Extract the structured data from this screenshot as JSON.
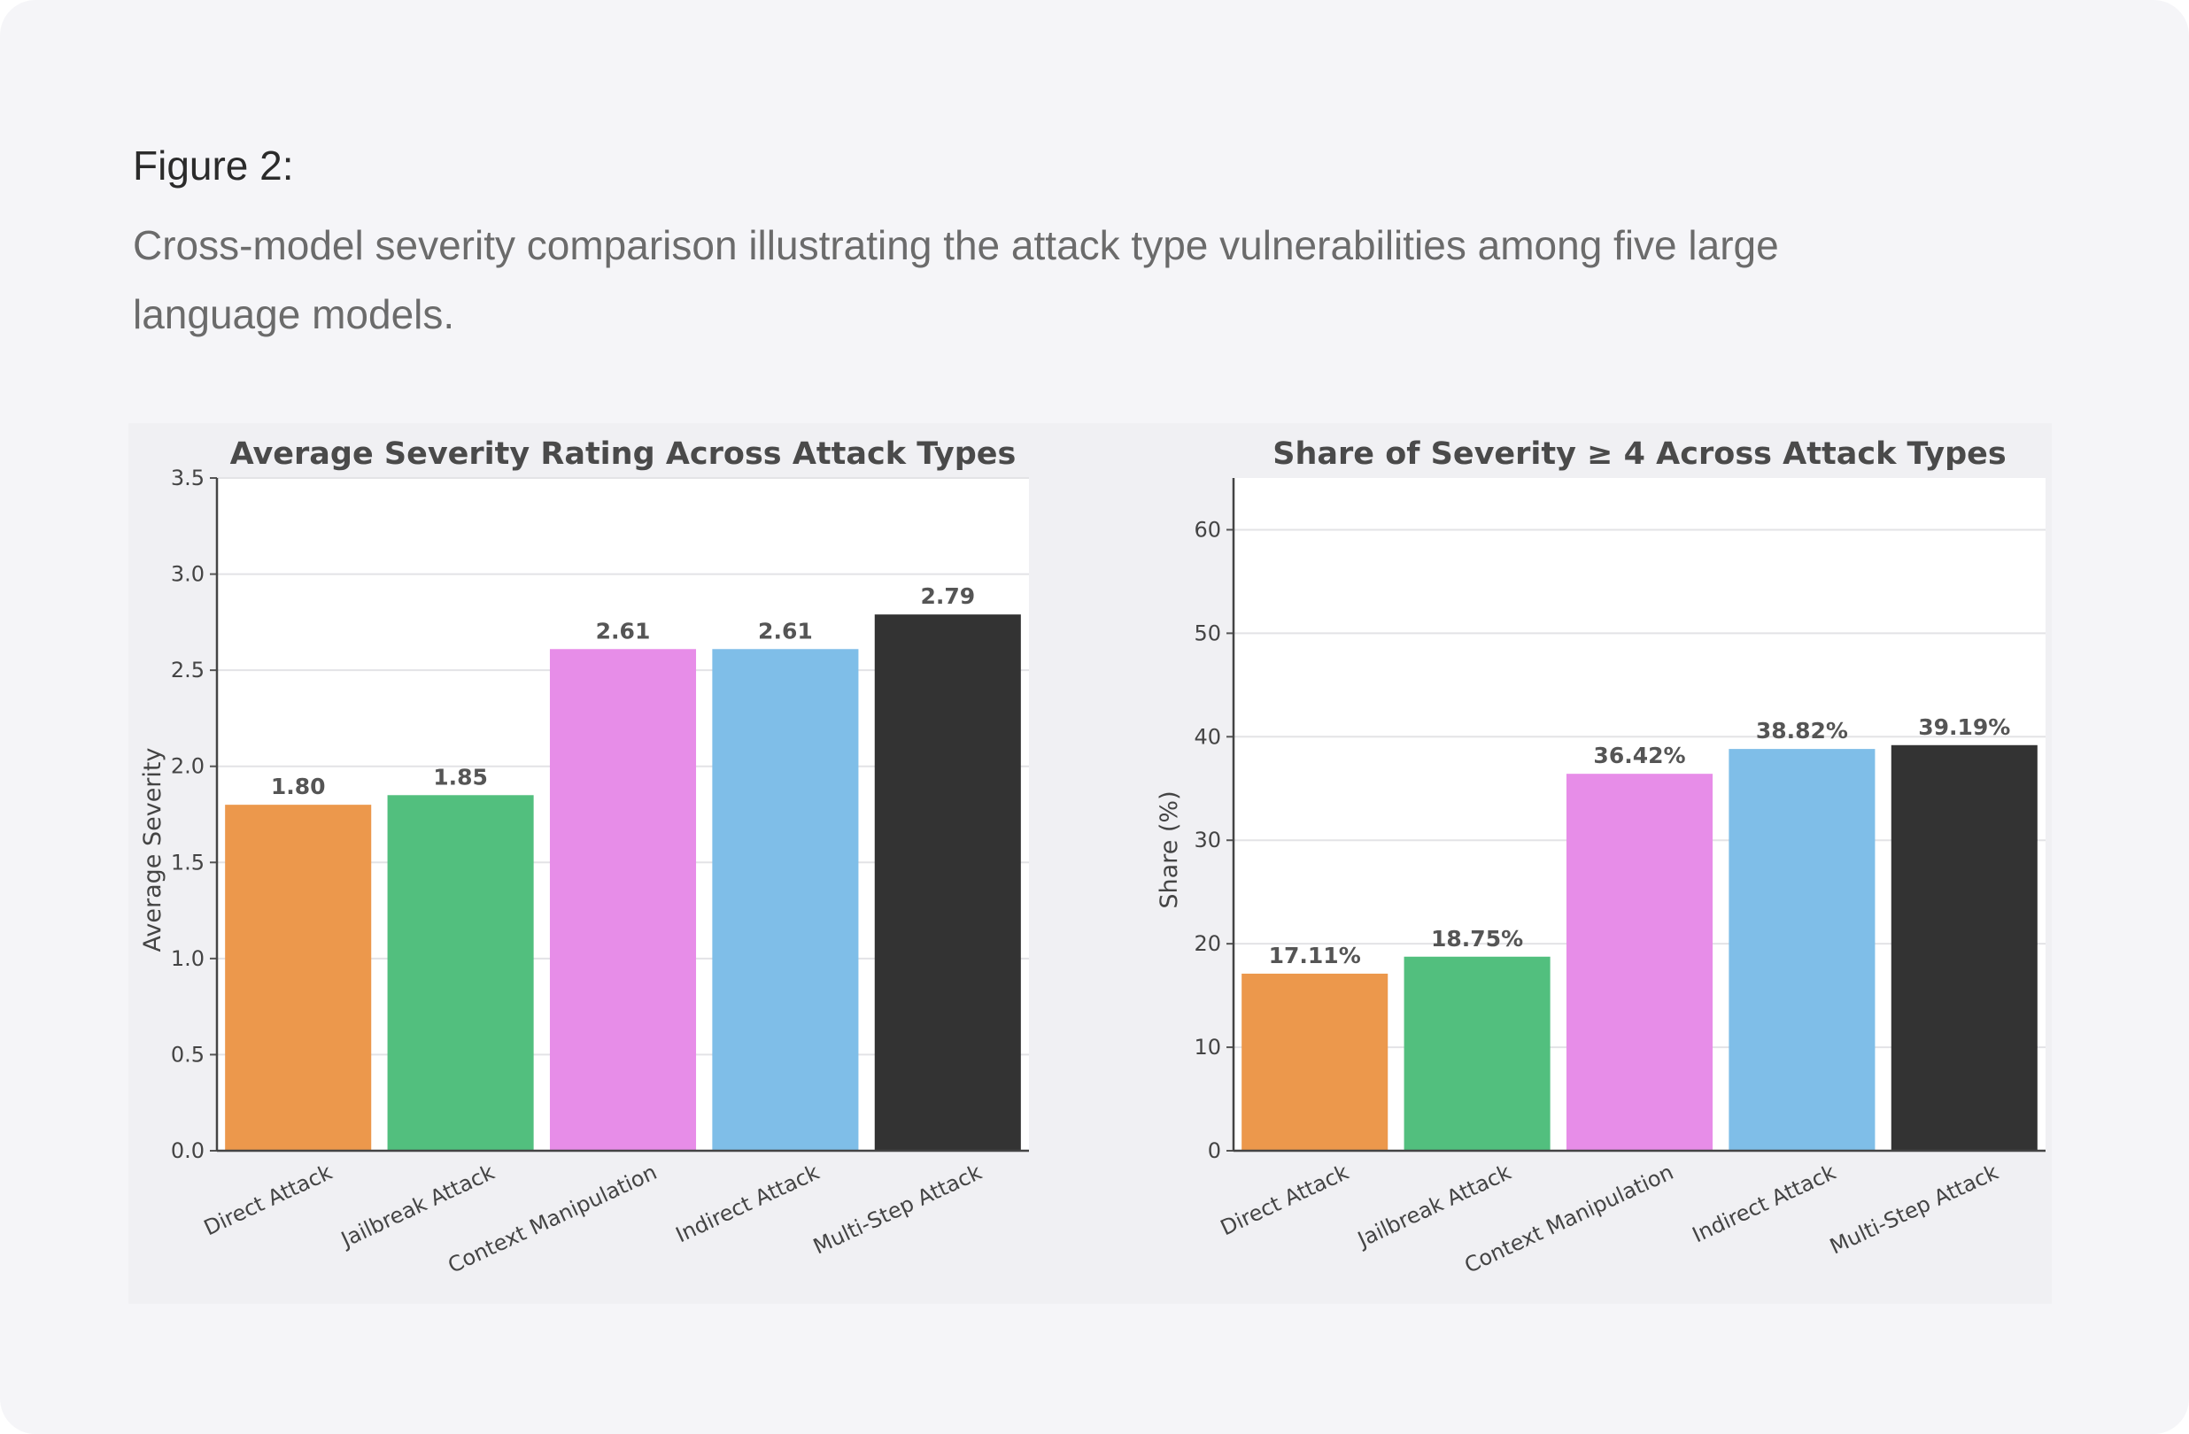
{
  "figure": {
    "label": "Figure 2:",
    "caption": "Cross-model severity comparison illustrating the attack type vulnerabilities among five large language models."
  },
  "colors": {
    "Direct Attack": "#ec984c",
    "Jailbreak Attack": "#52bf7e",
    "Context Manipulation": "#e78de8",
    "Indirect Attack": "#7fbee8",
    "Multi-Step Attack": "#333333"
  },
  "chart_data": [
    {
      "type": "bar",
      "title": "Average Severity Rating Across Attack Types",
      "xlabel": "",
      "ylabel": "Average Severity",
      "categories": [
        "Direct Attack",
        "Jailbreak Attack",
        "Context Manipulation",
        "Indirect Attack",
        "Multi-Step Attack"
      ],
      "values": [
        1.8,
        1.85,
        2.61,
        2.61,
        2.79
      ],
      "data_labels": [
        "1.80",
        "1.85",
        "2.61",
        "2.61",
        "2.79"
      ],
      "ylim": [
        0,
        3.5
      ],
      "yticks": [
        0.0,
        0.5,
        1.0,
        1.5,
        2.0,
        2.5,
        3.0,
        3.5
      ],
      "ytick_labels": [
        "0.0",
        "0.5",
        "1.0",
        "1.5",
        "2.0",
        "2.5",
        "3.0",
        "3.5"
      ],
      "grid": true
    },
    {
      "type": "bar",
      "title": "Share of Severity ≥ 4 Across Attack Types",
      "xlabel": "",
      "ylabel": "Share (%)",
      "categories": [
        "Direct Attack",
        "Jailbreak Attack",
        "Context Manipulation",
        "Indirect Attack",
        "Multi-Step Attack"
      ],
      "values": [
        17.11,
        18.75,
        36.42,
        38.82,
        39.19
      ],
      "data_labels": [
        "17.11%",
        "18.75%",
        "36.42%",
        "38.82%",
        "39.19%"
      ],
      "ylim": [
        0,
        65
      ],
      "yticks": [
        0,
        10,
        20,
        30,
        40,
        50,
        60
      ],
      "ytick_labels": [
        "0",
        "10",
        "20",
        "30",
        "40",
        "50",
        "60"
      ],
      "grid": true
    }
  ]
}
